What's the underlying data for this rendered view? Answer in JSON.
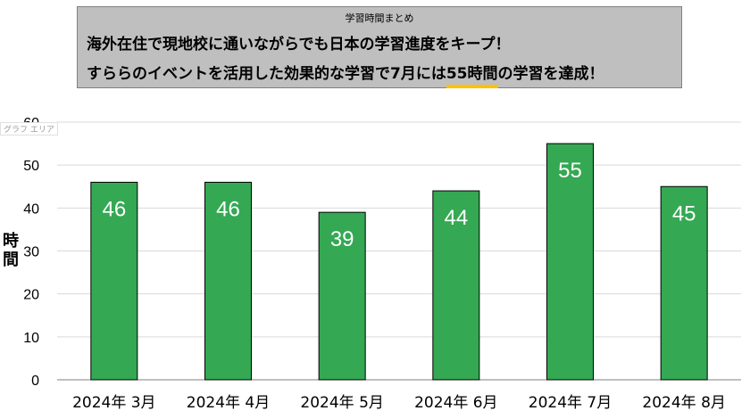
{
  "banner": {
    "heading": "学習時間まとめ",
    "line1": "海外在住で現地校に通いながらでも日本の学習進度をキープ！",
    "line2_pre": "すららのイベントを活用した効果的な学習で7月には",
    "line2_highlight": "55時間",
    "line2_post": "の学習を達成！",
    "highlight_color": "#ffc000"
  },
  "chart_area_label": "グラフ エリア",
  "chart_data": {
    "type": "bar",
    "categories": [
      "2024年 3月",
      "2024年 4月",
      "2024年 5月",
      "2024年 6月",
      "2024年 7月",
      "2024年 8月"
    ],
    "values": [
      46,
      46,
      39,
      44,
      55,
      45
    ],
    "ylabel": "時間",
    "xlabel": "",
    "ylim": [
      0,
      60
    ],
    "yticks": [
      0,
      10,
      20,
      30,
      40,
      50,
      60
    ],
    "bar_color": "#34a853",
    "grid": true,
    "data_labels": true
  }
}
